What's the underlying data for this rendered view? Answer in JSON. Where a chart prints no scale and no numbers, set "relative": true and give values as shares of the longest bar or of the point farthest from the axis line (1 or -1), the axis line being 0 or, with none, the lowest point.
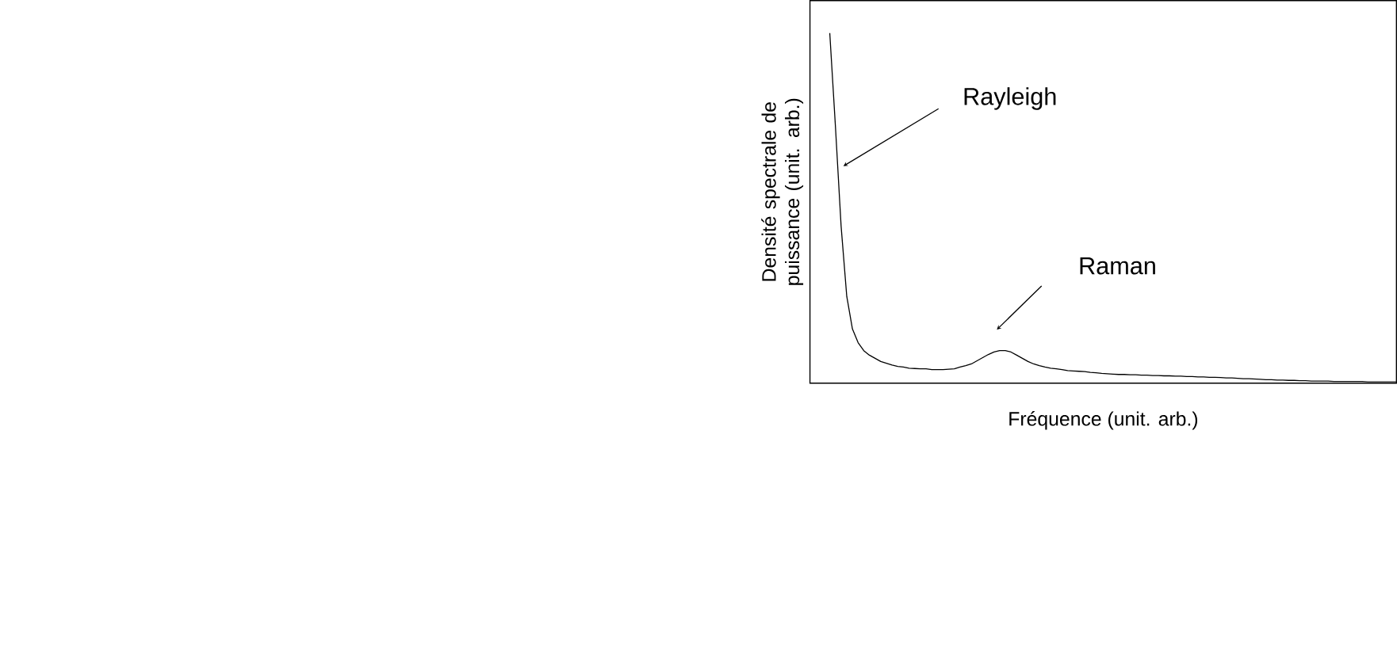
{
  "chart_data": {
    "type": "line",
    "relative": true,
    "xlabel": "Fréquence (unit. arb.)",
    "ylabel": "Densité spectrale de puissance (unit. arb.)",
    "annotations": [
      "Rayleigh",
      "Raman"
    ],
    "categories": [
      null,
      null,
      null,
      null,
      null,
      null,
      null,
      null,
      null,
      null,
      null,
      null,
      null,
      null,
      null,
      null,
      null,
      null,
      null,
      null,
      null,
      null,
      null,
      null,
      null,
      null,
      null,
      null,
      null,
      null,
      null,
      null,
      null,
      null,
      null,
      null,
      null,
      null,
      null,
      null,
      null,
      null,
      null,
      null,
      null,
      null,
      null,
      null,
      null,
      null,
      null,
      null,
      null,
      null,
      null,
      null,
      null,
      null,
      null,
      null,
      null,
      null,
      null,
      null,
      null,
      null,
      null,
      null,
      null,
      null,
      null,
      null,
      null,
      null,
      null,
      null,
      null,
      null,
      null,
      null,
      null,
      null,
      null,
      null,
      null,
      null,
      null,
      null,
      null,
      null,
      null,
      null,
      null,
      null,
      null,
      null,
      null,
      null,
      null,
      null,
      null
    ],
    "series": [
      {
        "color": "#000000",
        "values": [
          1.0,
          0.733,
          0.449,
          0.248,
          0.155,
          0.116,
          0.093,
          0.08,
          0.071,
          0.062,
          0.057,
          0.052,
          0.048,
          0.046,
          0.043,
          0.042,
          0.041,
          0.041,
          0.039,
          0.039,
          0.039,
          0.04,
          0.041,
          0.046,
          0.05,
          0.055,
          0.064,
          0.073,
          0.082,
          0.089,
          0.093,
          0.093,
          0.089,
          0.08,
          0.071,
          0.062,
          0.055,
          0.05,
          0.046,
          0.043,
          0.041,
          0.039,
          0.036,
          0.035,
          0.034,
          0.033,
          0.031,
          0.03,
          0.028,
          0.027,
          0.026,
          0.025,
          0.025,
          0.024,
          0.024,
          0.023,
          0.023,
          0.022,
          0.022,
          0.021,
          0.021,
          0.02,
          0.02,
          0.019,
          0.019,
          0.018,
          0.018,
          0.017,
          0.017,
          0.016,
          0.015,
          0.015,
          0.014,
          0.013,
          0.013,
          0.012,
          0.011,
          0.01,
          0.01,
          0.009,
          0.009,
          0.008,
          0.008,
          0.007,
          0.007,
          0.006,
          0.006,
          0.006,
          0.006,
          0.005,
          0.005,
          0.005,
          0.005,
          0.005,
          0.005,
          0.004,
          0.004,
          0.004,
          0.004,
          0.004,
          0.004
        ]
      }
    ]
  }
}
